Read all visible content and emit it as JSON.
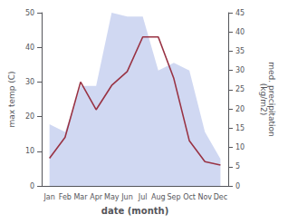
{
  "chart_data": {
    "type": "line",
    "xlabel": "date (month)",
    "ylabel": "max temp (C)",
    "y2label": "med. precipitation\n(kg/m2)",
    "categories": [
      "Jan",
      "Feb",
      "Mar",
      "Apr",
      "May",
      "Jun",
      "Jul",
      "Aug",
      "Sep",
      "Oct",
      "Nov",
      "Dec"
    ],
    "series": [
      {
        "type": "area",
        "color": "#aab8e8",
        "axis": "y2",
        "values": [
          16,
          14,
          26,
          26,
          45,
          44,
          44,
          30,
          32,
          30,
          14,
          7
        ]
      },
      {
        "type": "line",
        "color": "#993344",
        "values": [
          8,
          14,
          30,
          22,
          29,
          33,
          43,
          43,
          31,
          13,
          7,
          6
        ]
      }
    ],
    "ylim": [
      0,
      50
    ],
    "yticks": [
      0,
      10,
      20,
      30,
      40,
      50
    ],
    "y2lim": [
      0,
      45
    ],
    "y2ticks": [
      0,
      5,
      10,
      15,
      20,
      25,
      30,
      35,
      40,
      45
    ],
    "grid": false
  }
}
